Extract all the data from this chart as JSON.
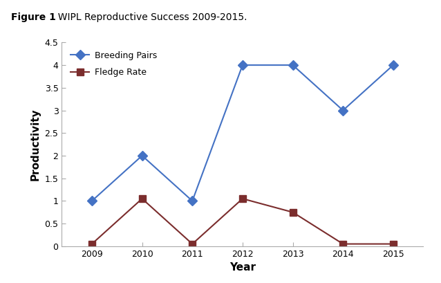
{
  "title_bold": "Figure 1",
  "title_rest": ". WIPL Reproductive Success 2009-2015.",
  "years": [
    2009,
    2010,
    2011,
    2012,
    2013,
    2014,
    2015
  ],
  "breeding_pairs": [
    1,
    2,
    1,
    4,
    4,
    3,
    4
  ],
  "fledge_rate": [
    0.05,
    1.05,
    0.05,
    1.05,
    0.75,
    0.05,
    0.05
  ],
  "breeding_color": "#4472C4",
  "fledge_color": "#7B2D2D",
  "xlabel": "Year",
  "ylabel": "Productivity",
  "ylim": [
    0,
    4.5
  ],
  "yticks": [
    0,
    0.5,
    1,
    1.5,
    2,
    2.5,
    3,
    3.5,
    4,
    4.5
  ],
  "ytick_labels": [
    "0",
    "0.5",
    "1",
    "1.5",
    "2",
    "2.5",
    "3",
    "3.5",
    "4",
    "4.5"
  ],
  "legend_breeding": "Breeding Pairs",
  "legend_fledge": "Fledge Rate",
  "plot_bg": "#ffffff",
  "fig_bg": "#ffffff"
}
